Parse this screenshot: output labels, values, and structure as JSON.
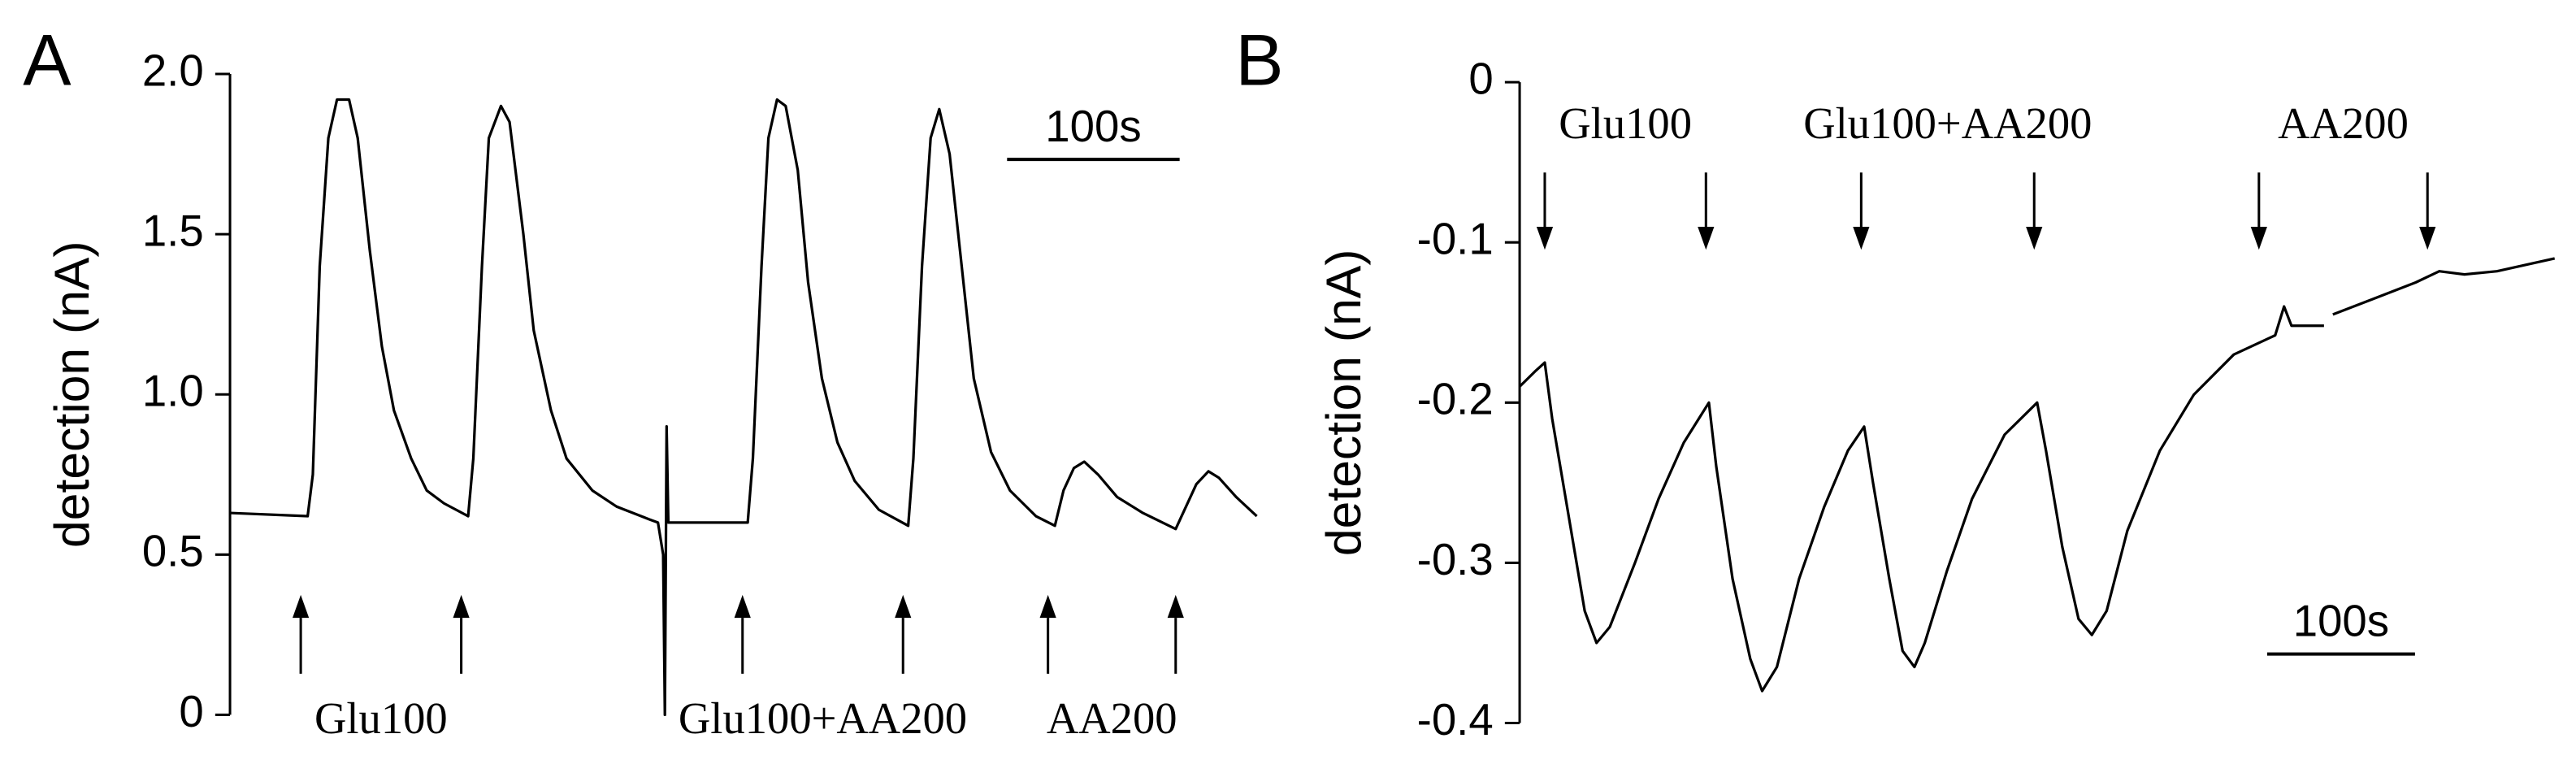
{
  "chart_data": [
    {
      "type": "line",
      "panel": "A",
      "ylabel": "detection (nA)",
      "color": "#000000",
      "x": [
        0,
        45,
        48,
        52,
        57,
        62,
        69,
        74,
        81,
        88,
        95,
        105,
        114,
        124,
        138,
        141,
        146,
        150,
        157,
        162,
        170,
        176,
        186,
        195,
        210,
        224,
        243,
        248,
        251,
        252,
        253,
        254,
        267,
        300,
        303,
        308,
        312,
        317,
        322,
        329,
        335,
        343,
        352,
        362,
        376,
        393,
        396,
        401,
        406,
        411,
        417,
        424,
        431,
        441,
        452,
        467,
        478,
        483,
        489,
        495,
        503,
        514,
        529,
        548,
        554,
        560,
        567,
        573,
        583,
        595
      ],
      "values": [
        0.63,
        0.62,
        0.75,
        1.4,
        1.8,
        1.92,
        1.92,
        1.8,
        1.45,
        1.15,
        0.95,
        0.8,
        0.7,
        0.66,
        0.62,
        0.8,
        1.4,
        1.8,
        1.9,
        1.85,
        1.5,
        1.2,
        0.95,
        0.8,
        0.7,
        0.65,
        0.61,
        0.6,
        0.5,
        0.0,
        0.9,
        0.6,
        0.6,
        0.6,
        0.8,
        1.4,
        1.8,
        1.92,
        1.9,
        1.7,
        1.35,
        1.05,
        0.85,
        0.73,
        0.64,
        0.59,
        0.8,
        1.4,
        1.8,
        1.89,
        1.75,
        1.4,
        1.05,
        0.82,
        0.7,
        0.62,
        0.59,
        0.7,
        0.77,
        0.79,
        0.75,
        0.68,
        0.63,
        0.58,
        0.65,
        0.72,
        0.76,
        0.74,
        0.68,
        0.62
      ],
      "xlim": [
        0,
        595
      ],
      "ylim": [
        0,
        2
      ],
      "yticks": [
        0,
        0.5,
        {
          "value": 1,
          "label": "1.0"
        },
        1.5,
        {
          "value": 2,
          "label": "2.0"
        }
      ],
      "arrow_direction": "up",
      "stimuli": [
        {
          "label": "Glu100",
          "times": [
            41,
            134
          ]
        },
        {
          "label": "Glu100+AA200",
          "times": [
            297,
            390
          ]
        },
        {
          "label": "AA200",
          "times": [
            474,
            548
          ]
        }
      ],
      "scale_bar": {
        "value": 100,
        "label": "100s"
      }
    },
    {
      "type": "line",
      "panel": "B",
      "ylabel": "detection (nA)",
      "color": "#000000",
      "x": [
        0,
        11,
        17,
        22,
        33,
        44,
        52,
        61,
        78,
        94,
        111,
        128,
        133,
        144,
        156,
        164,
        174,
        189,
        206,
        222,
        233,
        239,
        250,
        259,
        267,
        274,
        289,
        306,
        328,
        350,
        356,
        367,
        378,
        387,
        397,
        411,
        433,
        456,
        483,
        511,
        517,
        522,
        544,
        547,
        550,
        578,
        606,
        622,
        639,
        661,
        700
      ],
      "values": [
        -0.19,
        -0.18,
        -0.175,
        -0.21,
        -0.27,
        -0.33,
        -0.35,
        -0.34,
        -0.3,
        -0.26,
        -0.225,
        -0.2,
        -0.24,
        -0.31,
        -0.36,
        -0.38,
        -0.365,
        -0.31,
        -0.265,
        -0.23,
        -0.215,
        -0.25,
        -0.31,
        -0.355,
        -0.365,
        -0.35,
        -0.305,
        -0.26,
        -0.22,
        -0.2,
        -0.23,
        -0.29,
        -0.335,
        -0.345,
        -0.33,
        -0.28,
        -0.23,
        -0.195,
        -0.17,
        -0.158,
        -0.14,
        -0.152,
        -0.152,
        null,
        -0.145,
        -0.135,
        -0.125,
        -0.118,
        -0.12,
        -0.118,
        -0.11
      ],
      "xlim": [
        0,
        700
      ],
      "ylim": [
        -0.4,
        0
      ],
      "yticks": [
        0,
        -0.1,
        -0.2,
        -0.3,
        -0.4
      ],
      "arrow_direction": "down",
      "stimuli": [
        {
          "label": "Glu100",
          "times": [
            17,
            126
          ]
        },
        {
          "label": "Glu100+AA200",
          "times": [
            231,
            348
          ]
        },
        {
          "label": "AA200",
          "times": [
            500,
            614
          ]
        }
      ],
      "scale_bar": {
        "value": 100,
        "label": "100s"
      }
    }
  ]
}
